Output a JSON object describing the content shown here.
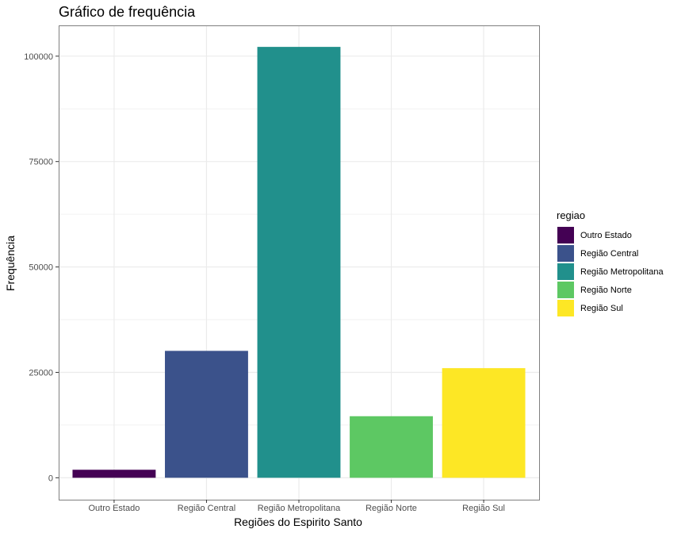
{
  "chart_data": {
    "type": "bar",
    "title": "Gráfico de frequência",
    "xlabel": "Regiões do Espirito Santo",
    "ylabel": "Frequência",
    "categories": [
      "Outro Estado",
      "Região Central",
      "Região Metropolitana",
      "Região Norte",
      "Região Sul"
    ],
    "values": [
      1900,
      30100,
      102200,
      14600,
      26000
    ],
    "colors": [
      "#440154",
      "#3B528B",
      "#21908C",
      "#5DC863",
      "#FDE725"
    ],
    "yticks": [
      0,
      25000,
      50000,
      75000,
      100000
    ],
    "ylim": [
      -5200,
      107300
    ],
    "grid": true,
    "legend": {
      "title": "regiao",
      "placement": "right",
      "entries": [
        "Outro Estado",
        "Região Central",
        "Região Metropolitana",
        "Região Norte",
        "Região Sul"
      ]
    }
  }
}
